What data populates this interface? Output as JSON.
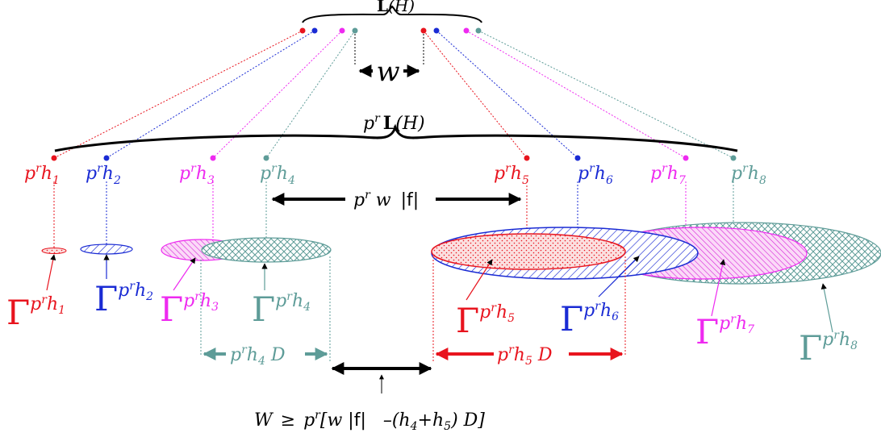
{
  "top_brace": {
    "label_main": "L",
    "label_paren": "(H)"
  },
  "mid_brace": {
    "label_prefix": "p",
    "label_sup": "r",
    "label_main": "L",
    "label_paren": "(H)"
  },
  "w_label": "w",
  "points_top": [
    {
      "id": "h1",
      "color": "#e8141e"
    },
    {
      "id": "h2",
      "color": "#1a2bd4"
    },
    {
      "id": "h3",
      "color": "#ee2af0"
    },
    {
      "id": "h4",
      "color": "#5e9c98"
    },
    {
      "id": "h5",
      "color": "#e8141e"
    },
    {
      "id": "h6",
      "color": "#1a2bd4"
    },
    {
      "id": "h7",
      "color": "#ee2af0"
    },
    {
      "id": "h8",
      "color": "#5e9c98"
    }
  ],
  "point_labels": [
    {
      "base": "p",
      "sup": "r",
      "var": "h",
      "sub": "1",
      "color": "#e8141e"
    },
    {
      "base": "p",
      "sup": "r",
      "var": "h",
      "sub": "2",
      "color": "#1a2bd4"
    },
    {
      "base": "p",
      "sup": "r",
      "var": "h",
      "sub": "3",
      "color": "#ee2af0"
    },
    {
      "base": "p",
      "sup": "r",
      "var": "h",
      "sub": "4",
      "color": "#5e9c98"
    },
    {
      "base": "p",
      "sup": "r",
      "var": "h",
      "sub": "5",
      "color": "#e8141e"
    },
    {
      "base": "p",
      "sup": "r",
      "var": "h",
      "sub": "6",
      "color": "#1a2bd4"
    },
    {
      "base": "p",
      "sup": "r",
      "var": "h",
      "sub": "7",
      "color": "#ee2af0"
    },
    {
      "base": "p",
      "sup": "r",
      "var": "h",
      "sub": "8",
      "color": "#5e9c98"
    }
  ],
  "mid_arrow": {
    "base": "p",
    "sup": "r",
    "rest": " w",
    "abs": "|f|"
  },
  "gamma_labels": [
    {
      "greek": "Γ",
      "base": "p",
      "sup": "r",
      "var": "h",
      "sub": "1",
      "color": "#e8141e"
    },
    {
      "greek": "Γ",
      "base": "p",
      "sup": "r",
      "var": "h",
      "sub": "2",
      "color": "#1a2bd4"
    },
    {
      "greek": "Γ",
      "base": "p",
      "sup": "r",
      "var": "h",
      "sub": "3",
      "color": "#ee2af0"
    },
    {
      "greek": "Γ",
      "base": "p",
      "sup": "r",
      "var": "h",
      "sub": "4",
      "color": "#5e9c98"
    },
    {
      "greek": "Γ",
      "base": "p",
      "sup": "r",
      "var": "h",
      "sub": "5",
      "color": "#e8141e"
    },
    {
      "greek": "Γ",
      "base": "p",
      "sup": "r",
      "var": "h",
      "sub": "6",
      "color": "#1a2bd4"
    },
    {
      "greek": "Γ",
      "base": "p",
      "sup": "r",
      "var": "h",
      "sub": "7",
      "color": "#ee2af0"
    },
    {
      "greek": "Γ",
      "base": "p",
      "sup": "r",
      "var": "h",
      "sub": "8",
      "color": "#5e9c98"
    }
  ],
  "left_D_label": {
    "base": "p",
    "sup": "r",
    "var": "h",
    "sub": "4",
    "tail": " D",
    "color": "#5e9c98"
  },
  "right_D_label": {
    "base": "p",
    "sup": "r",
    "var": "h",
    "sub": "5",
    "tail": " D",
    "color": "#e8141e"
  },
  "bottom_formula": {
    "W": "W",
    "geq": "≥",
    "p": "p",
    "sup": "r",
    "open": "[w ",
    "abs": "|f|",
    "mid": "  –(h",
    "sub4": "4",
    "plus": "+h",
    "sub5": "5",
    "close": ") D]"
  }
}
